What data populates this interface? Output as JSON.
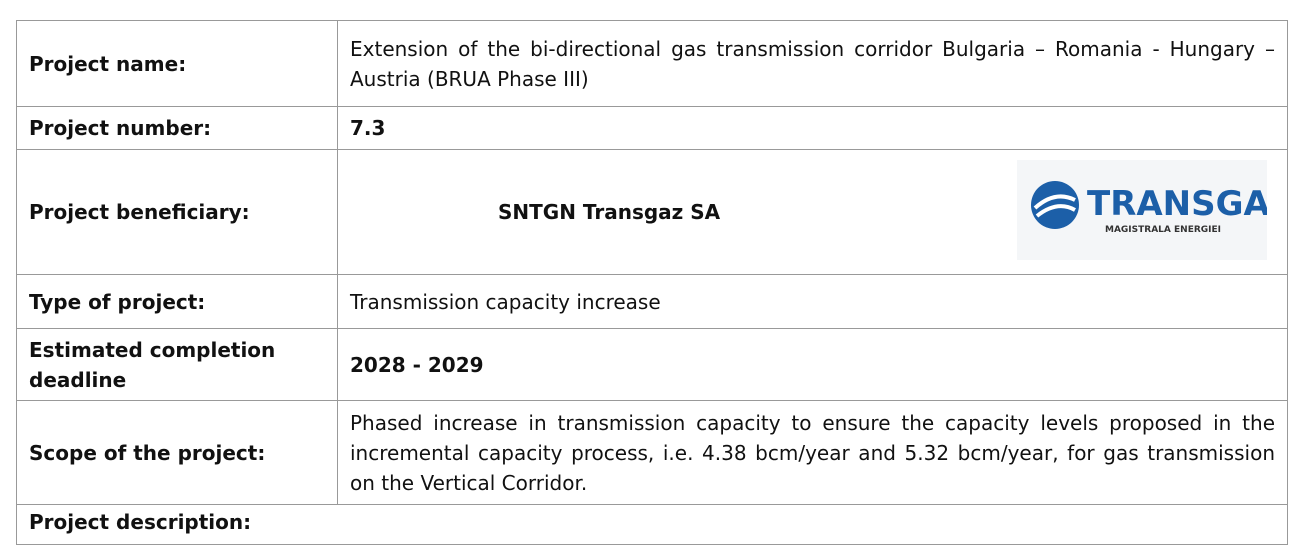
{
  "table": {
    "rows": [
      {
        "label": "Project name:",
        "value": "Extension of the bi-directional gas transmission corridor Bulgaria – Romania - Hungary – Austria (BRUA Phase III)"
      },
      {
        "label": "Project number:",
        "value": "7.3"
      },
      {
        "label": "Project beneficiary:",
        "value": "SNTGN Transgaz SA"
      },
      {
        "label": "Type of project:",
        "value": "Transmission capacity increase"
      },
      {
        "label": "Estimated completion deadline",
        "value": "2028 - 2029"
      },
      {
        "label": "Scope of the project:",
        "value": "Phased increase in transmission capacity to ensure the capacity levels proposed in the incremental capacity process, i.e. 4.38 bcm/year and 5.32 bcm/year, for gas transmission on the Vertical Corridor."
      }
    ],
    "footer": "Project description:"
  },
  "logo": {
    "name": "TRANSGAZ",
    "tagline": "MAGISTRALA ENERGIEI"
  }
}
